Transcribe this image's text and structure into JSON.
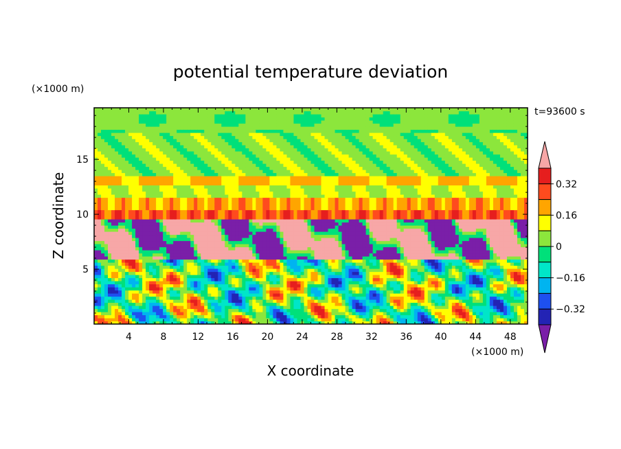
{
  "chart_data": {
    "type": "heatmap",
    "title": "potential temperature deviation",
    "xlabel": "X coordinate",
    "ylabel": "Z coordinate",
    "x_unit": "(×1000 m)",
    "y_unit": "(×1000 m)",
    "time_label": "t=93600 s",
    "xlim": [
      0,
      50
    ],
    "ylim": [
      0,
      19.7
    ],
    "x_ticks": [
      "4",
      "8",
      "12",
      "16",
      "20",
      "24",
      "28",
      "32",
      "36",
      "40",
      "44",
      "48"
    ],
    "y_ticks": [
      "5",
      "10",
      "15"
    ],
    "colorbar": {
      "levels": [
        -0.4,
        -0.32,
        -0.24,
        -0.16,
        -0.08,
        0,
        0.08,
        0.16,
        0.24,
        0.32,
        0.4
      ],
      "labels": [
        "0.32",
        "0.16",
        "0",
        "−0.16",
        "−0.32"
      ],
      "colors": [
        "#7a1fa8",
        "#2323b4",
        "#1e50f0",
        "#00b4f0",
        "#00e6c8",
        "#00e07a",
        "#8ce63c",
        "#ffff00",
        "#ffa500",
        "#ff4b1e",
        "#e61e1e",
        "#f7a7a7"
      ]
    },
    "bands_description": [
      {
        "z_range": [
          17.5,
          19.7
        ],
        "value": 0.04
      },
      {
        "z_range": [
          13.5,
          17.5
        ],
        "value": 0.05
      },
      {
        "z_range": [
          12.8,
          13.5
        ],
        "value": 0.18
      },
      {
        "z_range": [
          11.6,
          12.8
        ],
        "value": 0.08
      },
      {
        "z_range": [
          10.4,
          11.6
        ],
        "value": 0.2
      },
      {
        "z_range": [
          9.5,
          10.4
        ],
        "value": 0.3
      },
      {
        "z_range": [
          6.0,
          9.5
        ],
        "value": -0.4
      },
      {
        "z_range": [
          0,
          6.0
        ],
        "value": 0.0
      }
    ]
  }
}
